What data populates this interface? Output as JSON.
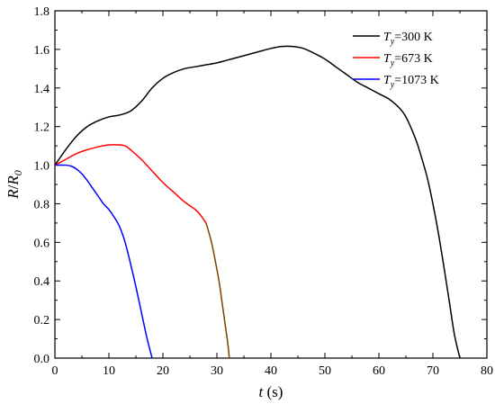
{
  "chart_data": {
    "type": "line",
    "title": "",
    "xlabel": {
      "var": "t",
      "unit": " (s)"
    },
    "ylabel": {
      "var": "R",
      "sep": "/",
      "var2": "R",
      "sub": "0"
    },
    "xlim": [
      0,
      80
    ],
    "ylim": [
      0,
      1.8
    ],
    "xticks": [
      0,
      10,
      20,
      30,
      40,
      50,
      60,
      70,
      80
    ],
    "yticks": [
      0.0,
      0.2,
      0.4,
      0.6,
      0.8,
      1.0,
      1.2,
      1.4,
      1.6,
      1.8
    ],
    "ytick_labels": [
      "0.0",
      "0.2",
      "0.4",
      "0.6",
      "0.8",
      "1.0",
      "1.2",
      "1.4",
      "1.6",
      "1.8"
    ],
    "grid": false,
    "legend_position": "top-right",
    "series": [
      {
        "label": {
          "var": "T",
          "sub": "y",
          "text": "=300 K"
        },
        "color": "#000000",
        "x": [
          0,
          2,
          4,
          6,
          8,
          10,
          12,
          14,
          16,
          18,
          20,
          22,
          24,
          26,
          28,
          30,
          32,
          34,
          36,
          38,
          40,
          42,
          44,
          46,
          48,
          50,
          52,
          54,
          56,
          58,
          60,
          62,
          64,
          65,
          66,
          67,
          68,
          69,
          70,
          71,
          72,
          73,
          74,
          75
        ],
        "y": [
          1.0,
          1.08,
          1.15,
          1.2,
          1.23,
          1.25,
          1.26,
          1.28,
          1.33,
          1.4,
          1.45,
          1.48,
          1.5,
          1.51,
          1.52,
          1.53,
          1.545,
          1.56,
          1.575,
          1.59,
          1.605,
          1.615,
          1.615,
          1.605,
          1.58,
          1.55,
          1.51,
          1.47,
          1.43,
          1.4,
          1.37,
          1.34,
          1.29,
          1.25,
          1.19,
          1.12,
          1.03,
          0.93,
          0.8,
          0.65,
          0.48,
          0.3,
          0.12,
          0.0
        ]
      },
      {
        "label": {
          "var": "T",
          "sub": "y",
          "text": "=673 K"
        },
        "color": "#ff0000",
        "x": [
          0,
          2,
          4,
          6,
          8,
          10,
          12,
          13,
          14,
          16,
          18,
          20,
          22,
          24,
          26,
          27,
          28
        ],
        "y": [
          1.0,
          1.03,
          1.06,
          1.08,
          1.095,
          1.105,
          1.105,
          1.1,
          1.08,
          1.03,
          0.97,
          0.91,
          0.86,
          0.81,
          0.77,
          0.74,
          0.7
        ]
      },
      {
        "label": {
          "var": "T",
          "sub": "y",
          "text": "=1073 K"
        },
        "color": "#0000ff",
        "x": [
          0,
          1,
          2,
          3,
          4,
          5,
          6,
          7,
          8,
          9,
          10,
          11,
          12,
          13,
          14,
          15,
          16,
          17,
          18
        ],
        "y": [
          1.0,
          1.0,
          1.0,
          0.995,
          0.98,
          0.955,
          0.92,
          0.88,
          0.84,
          0.8,
          0.77,
          0.73,
          0.68,
          0.6,
          0.49,
          0.37,
          0.24,
          0.11,
          0.0
        ]
      },
      {
        "label": null,
        "color": "#804000",
        "x": [
          28,
          29,
          30,
          30.5,
          31,
          31.5,
          32,
          32.3
        ],
        "y": [
          0.7,
          0.6,
          0.46,
          0.38,
          0.28,
          0.18,
          0.08,
          0.0
        ]
      }
    ]
  }
}
